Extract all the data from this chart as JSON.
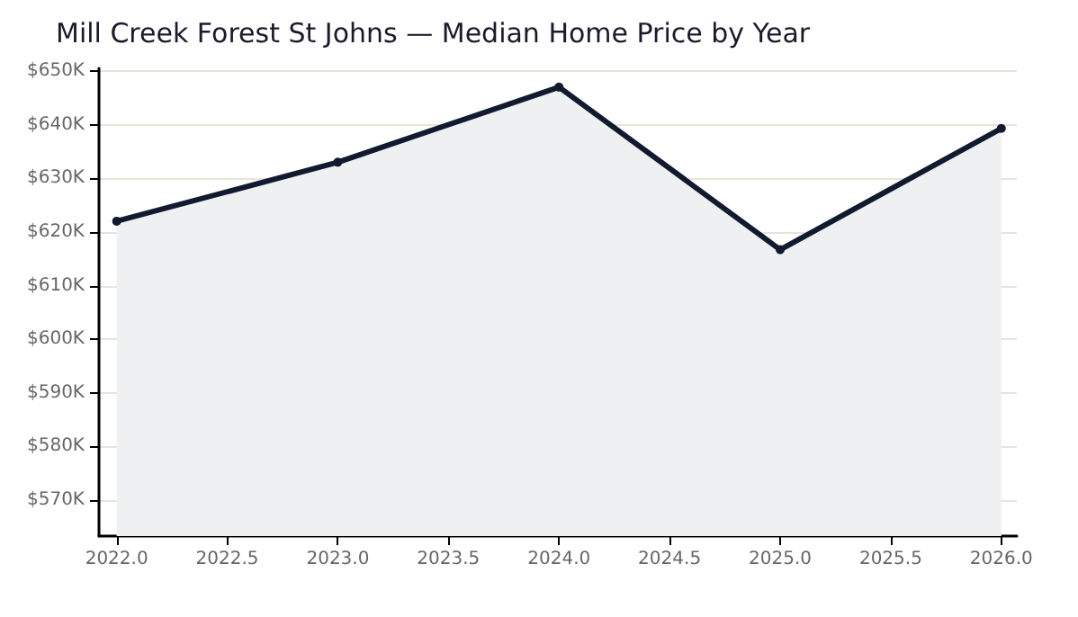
{
  "chart_data": {
    "type": "area",
    "title": "Mill Creek Forest St Johns — Median Home Price by Year",
    "x": [
      2022,
      2023,
      2024,
      2025,
      2026
    ],
    "series": [
      {
        "color": "#111a2e",
        "values": [
          622,
          633,
          647,
          616.7,
          639.3
        ]
      }
    ],
    "xlim": [
      2021.92,
      2026.07
    ],
    "xticks": [
      {
        "value": 2022,
        "label": "2022.0"
      },
      {
        "value": 2022.5,
        "label": "2022.5"
      },
      {
        "value": 2023,
        "label": "2023.0"
      },
      {
        "value": 2023.5,
        "label": "2023.5"
      },
      {
        "value": 2024,
        "label": "2024.0"
      },
      {
        "value": 2024.5,
        "label": "2024.5"
      },
      {
        "value": 2025,
        "label": "2025.0"
      },
      {
        "value": 2025.5,
        "label": "2025.5"
      },
      {
        "value": 2026,
        "label": "2026.0"
      }
    ],
    "ylim": [
      563.3,
      650.5
    ],
    "yticks": [
      {
        "value": 570,
        "label": "$570K"
      },
      {
        "value": 580,
        "label": "$580K"
      },
      {
        "value": 590,
        "label": "$590K"
      },
      {
        "value": 600,
        "label": "$600K"
      },
      {
        "value": 610,
        "label": "$610K"
      },
      {
        "value": 620,
        "label": "$620K"
      },
      {
        "value": 630,
        "label": "$630K"
      },
      {
        "value": 640,
        "label": "$640K"
      },
      {
        "value": 650,
        "label": "$650K"
      }
    ],
    "grid": "y",
    "marker": "circle",
    "line_style": "solid"
  }
}
